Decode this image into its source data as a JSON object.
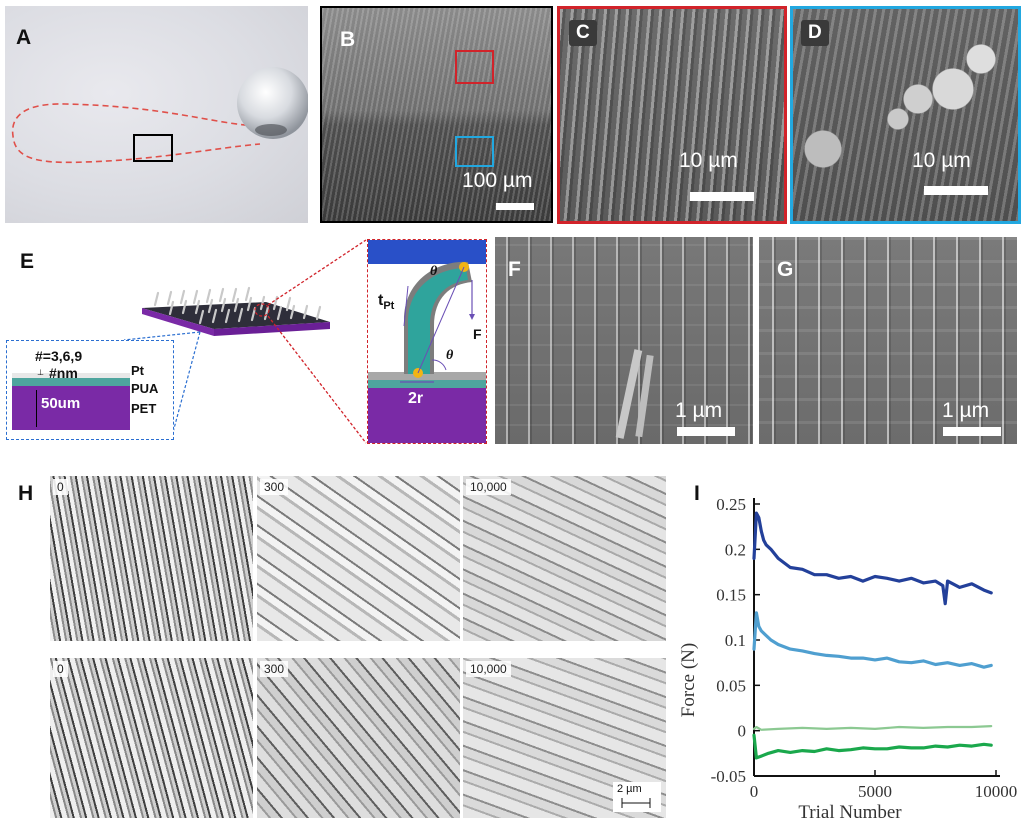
{
  "panels": {
    "A": "A",
    "B": "B",
    "C": "C",
    "D": "D",
    "E": "E",
    "F": "F",
    "G": "G",
    "H": "H",
    "I": "I"
  },
  "scale_bars": {
    "B": "100 µm",
    "C": "10 µm",
    "D": "10 µm",
    "F": "1 µm",
    "G": "1 µm",
    "H": "2 µm"
  },
  "panel_E": {
    "layer_count": "#=3,6,9",
    "thickness": "#nm",
    "pet_thickness": "50um",
    "layer_pt": "Pt",
    "layer_pua": "PUA",
    "layer_pet": "PET",
    "t_label": "t",
    "t_sub": "Pt",
    "theta": "θ",
    "force": "F",
    "radius": "2r"
  },
  "panel_H_labels": [
    "0",
    "300",
    "10,000",
    "0",
    "300",
    "10,000"
  ],
  "chart_data": {
    "type": "line",
    "xlabel": "Trial Number",
    "ylabel": "Force (N)",
    "xlim": [
      0,
      10000
    ],
    "ylim": [
      -0.05,
      0.25
    ],
    "xticks": [
      "0",
      "5000",
      "10000"
    ],
    "yticks": [
      "0.25",
      "0.2",
      "0.15",
      "0.1",
      "0.05",
      "0",
      "-0.05"
    ],
    "series": [
      {
        "color": "#23409a",
        "x": [
          0,
          100,
          200,
          300,
          400,
          500,
          700,
          1000,
          1500,
          2000,
          2500,
          3000,
          3500,
          4000,
          4500,
          5000,
          5500,
          6000,
          6500,
          7000,
          7500,
          7800,
          7900,
          8000,
          8500,
          9000,
          9500,
          9800
        ],
        "y": [
          0.19,
          0.24,
          0.235,
          0.22,
          0.21,
          0.205,
          0.2,
          0.19,
          0.18,
          0.178,
          0.172,
          0.172,
          0.168,
          0.17,
          0.165,
          0.17,
          0.168,
          0.165,
          0.168,
          0.163,
          0.165,
          0.16,
          0.14,
          0.165,
          0.158,
          0.162,
          0.155,
          0.152
        ]
      },
      {
        "color": "#4f9fd0",
        "x": [
          0,
          100,
          200,
          300,
          500,
          700,
          1000,
          1500,
          2000,
          2500,
          3000,
          3500,
          4000,
          4500,
          5000,
          5500,
          6000,
          6500,
          7000,
          7500,
          8000,
          8500,
          9000,
          9500,
          9800
        ],
        "y": [
          0.09,
          0.13,
          0.115,
          0.11,
          0.105,
          0.1,
          0.095,
          0.09,
          0.088,
          0.085,
          0.083,
          0.082,
          0.08,
          0.08,
          0.078,
          0.08,
          0.076,
          0.075,
          0.077,
          0.073,
          0.075,
          0.072,
          0.074,
          0.07,
          0.072
        ]
      },
      {
        "color": "#8cc992",
        "x": [
          0,
          100,
          300,
          1000,
          2000,
          3000,
          4000,
          5000,
          6000,
          7000,
          8000,
          9000,
          9800
        ],
        "y": [
          0.002,
          0.004,
          0.001,
          0.002,
          0.003,
          0.002,
          0.003,
          0.002,
          0.004,
          0.003,
          0.004,
          0.004,
          0.005
        ]
      },
      {
        "color": "#1aa84c",
        "x": [
          0,
          100,
          300,
          600,
          1000,
          1500,
          2000,
          2500,
          3000,
          3500,
          4000,
          4500,
          5000,
          5500,
          6000,
          6500,
          7000,
          7500,
          8000,
          8500,
          9000,
          9500,
          9800
        ],
        "y": [
          -0.005,
          -0.03,
          -0.028,
          -0.025,
          -0.022,
          -0.024,
          -0.022,
          -0.023,
          -0.02,
          -0.022,
          -0.021,
          -0.019,
          -0.02,
          -0.02,
          -0.018,
          -0.019,
          -0.019,
          -0.017,
          -0.018,
          -0.016,
          -0.017,
          -0.015,
          -0.016
        ]
      }
    ]
  }
}
